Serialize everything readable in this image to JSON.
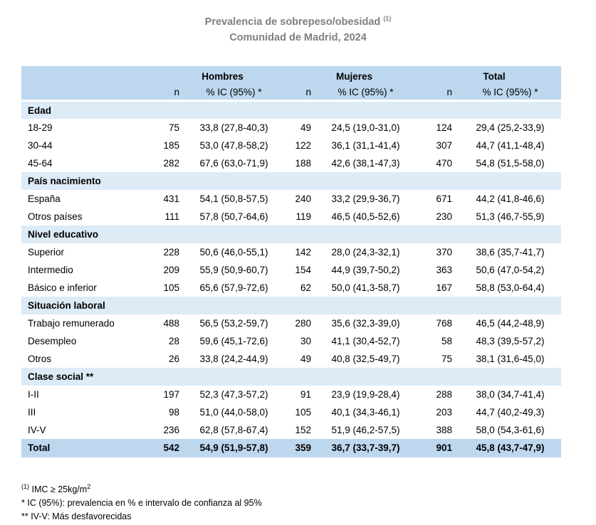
{
  "title": {
    "line1": "Prevalencia de sobrepeso/obesidad",
    "line1_marker": "(1)",
    "line2": "Comunidad de Madrid, 2024"
  },
  "chart_data": {
    "type": "table",
    "title": "Prevalencia de sobrepeso/obesidad (1) — Comunidad de Madrid, 2024",
    "column_groups": [
      "Hombres",
      "Mujeres",
      "Total"
    ],
    "subheader": {
      "n": "n",
      "ic": "% IC (95%) *"
    },
    "sections": [
      {
        "header": "Edad",
        "rows": [
          {
            "label": "18-29",
            "values": [
              "75",
              "33,8 (27,8-40,3)",
              "49",
              "24,5 (19,0-31,0)",
              "124",
              "29,4 (25,2-33,9)"
            ]
          },
          {
            "label": "30-44",
            "values": [
              "185",
              "53,0 (47,8-58,2)",
              "122",
              "36,1 (31,1-41,4)",
              "307",
              "44,7 (41,1-48,4)"
            ]
          },
          {
            "label": "45-64",
            "values": [
              "282",
              "67,6 (63,0-71,9)",
              "188",
              "42,6 (38,1-47,3)",
              "470",
              "54,8 (51,5-58,0)"
            ]
          }
        ]
      },
      {
        "header": "País nacimiento",
        "rows": [
          {
            "label": "España",
            "values": [
              "431",
              "54,1 (50,8-57,5)",
              "240",
              "33,2 (29,9-36,7)",
              "671",
              "44,2 (41,8-46,6)"
            ]
          },
          {
            "label": "Otros países",
            "values": [
              "111",
              "57,8 (50,7-64,6)",
              "119",
              "46,5 (40,5-52,6)",
              "230",
              "51,3 (46,7-55,9)"
            ]
          }
        ]
      },
      {
        "header": "Nivel educativo",
        "rows": [
          {
            "label": "Superior",
            "values": [
              "228",
              "50,6 (46,0-55,1)",
              "142",
              "28,0 (24,3-32,1)",
              "370",
              "38,6 (35,7-41,7)"
            ]
          },
          {
            "label": "Intermedio",
            "values": [
              "209",
              "55,9 (50,9-60,7)",
              "154",
              "44,9 (39,7-50,2)",
              "363",
              "50,6 (47,0-54,2)"
            ]
          },
          {
            "label": "Básico e inferior",
            "values": [
              "105",
              "65,6 (57,9-72,6)",
              "62",
              "50,0 (41,3-58,7)",
              "167",
              "58,8 (53,0-64,4)"
            ]
          }
        ]
      },
      {
        "header": "Situación laboral",
        "rows": [
          {
            "label": "Trabajo remunerado",
            "values": [
              "488",
              "56,5 (53,2-59,7)",
              "280",
              "35,6 (32,3-39,0)",
              "768",
              "46,5 (44,2-48,9)"
            ]
          },
          {
            "label": "Desempleo",
            "values": [
              "28",
              "59,6 (45,1-72,6)",
              "30",
              "41,1 (30,4-52,7)",
              "58",
              "48,3 (39,5-57,2)"
            ]
          },
          {
            "label": "Otros",
            "values": [
              "26",
              "33,8 (24,2-44,9)",
              "49",
              "40,8 (32,5-49,7)",
              "75",
              "38,1 (31,6-45,0)"
            ]
          }
        ]
      },
      {
        "header": "Clase social **",
        "rows": [
          {
            "label": "I-II",
            "values": [
              "197",
              "52,3 (47,3-57,2)",
              "91",
              "23,9 (19,9-28,4)",
              "288",
              "38,0 (34,7-41,4)"
            ]
          },
          {
            "label": "III",
            "values": [
              "98",
              "51,0 (44,0-58,0)",
              "105",
              "40,1 (34,3-46,1)",
              "203",
              "44,7 (40,2-49,3)"
            ]
          },
          {
            "label": "IV-V",
            "values": [
              "236",
              "62,8 (57,8-67,4)",
              "152",
              "51,9 (46,2-57,5)",
              "388",
              "58,0 (54,3-61,6)"
            ]
          }
        ]
      }
    ],
    "total_row": {
      "label": "Total",
      "values": [
        "542",
        "54,9 (51,9-57,8)",
        "359",
        "36,7 (33,7-39,7)",
        "901",
        "45,8 (43,7-47,9)"
      ]
    }
  },
  "footnotes": [
    {
      "marker": "(1)",
      "text": " IMC ≥ 25kg/m",
      "sup": "2"
    },
    {
      "marker": "*",
      "text": " IC (95%): prevalencia en % e intervalo de confianza al 95%",
      "sup": ""
    },
    {
      "marker": "**",
      "text": " IV-V: Más desfavorecidas",
      "sup": ""
    }
  ],
  "colors": {
    "header_band": "#BDD7EE",
    "section_band": "#DDEBF7",
    "total_band": "#BDD7EE",
    "title_text": "#7F7F7F",
    "body_text": "#000000",
    "background": "#FFFFFF"
  }
}
